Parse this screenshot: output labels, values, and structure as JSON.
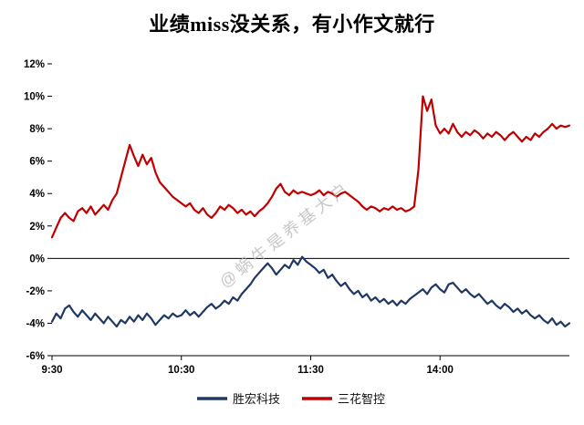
{
  "watermark": "@蜗牛是养基大户",
  "colors": {
    "axis": "#000000",
    "watermark": "#b3b3b3"
  },
  "chart_data": {
    "type": "line",
    "title": "业绩miss没关系，有小作文就行",
    "xlabel": "",
    "ylabel": "",
    "grid": false,
    "zero_line": true,
    "legend_position": "bottom",
    "ylim": [
      -6,
      12
    ],
    "xlim": [
      0,
      240
    ],
    "yticks": [
      {
        "v": -6,
        "label": "-6%"
      },
      {
        "v": -4,
        "label": "-4%"
      },
      {
        "v": -2,
        "label": "-2%"
      },
      {
        "v": 0,
        "label": "0%"
      },
      {
        "v": 2,
        "label": "2%"
      },
      {
        "v": 4,
        "label": "4%"
      },
      {
        "v": 6,
        "label": "6%"
      },
      {
        "v": 8,
        "label": "8%"
      },
      {
        "v": 10,
        "label": "10%"
      },
      {
        "v": 12,
        "label": "12%"
      }
    ],
    "xticks": [
      {
        "t": 0,
        "label": "9:30"
      },
      {
        "t": 60,
        "label": "10:30"
      },
      {
        "t": 120,
        "label": "11:30"
      },
      {
        "t": 180,
        "label": "14:00"
      }
    ],
    "x": [
      0,
      2,
      4,
      6,
      8,
      10,
      12,
      14,
      16,
      18,
      20,
      22,
      24,
      26,
      28,
      30,
      32,
      34,
      36,
      38,
      40,
      42,
      44,
      46,
      48,
      50,
      52,
      54,
      56,
      58,
      60,
      62,
      64,
      66,
      68,
      70,
      72,
      74,
      76,
      78,
      80,
      82,
      84,
      86,
      88,
      90,
      92,
      94,
      96,
      98,
      100,
      102,
      104,
      106,
      108,
      110,
      112,
      114,
      116,
      118,
      120,
      122,
      124,
      126,
      128,
      130,
      132,
      134,
      136,
      138,
      140,
      142,
      144,
      146,
      148,
      150,
      152,
      154,
      156,
      158,
      160,
      162,
      164,
      166,
      168,
      170,
      172,
      174,
      176,
      178,
      180,
      182,
      184,
      186,
      188,
      190,
      192,
      194,
      196,
      198,
      200,
      202,
      204,
      206,
      208,
      210,
      212,
      214,
      216,
      218,
      220,
      222,
      224,
      226,
      228,
      230,
      232,
      234,
      236,
      238,
      240
    ],
    "series": [
      {
        "name": "胜宏科技",
        "key": "shenghong",
        "color": "#1f3864",
        "values": [
          -3.9,
          -3.4,
          -3.7,
          -3.1,
          -2.9,
          -3.3,
          -3.6,
          -3.2,
          -3.5,
          -3.8,
          -3.4,
          -3.7,
          -4.0,
          -3.6,
          -3.9,
          -4.2,
          -3.8,
          -4.0,
          -3.6,
          -3.9,
          -3.5,
          -3.8,
          -3.4,
          -3.7,
          -4.1,
          -3.8,
          -3.5,
          -3.7,
          -3.4,
          -3.6,
          -3.5,
          -3.2,
          -3.5,
          -3.3,
          -3.6,
          -3.3,
          -3.0,
          -2.8,
          -3.1,
          -2.9,
          -2.6,
          -2.8,
          -2.4,
          -2.6,
          -2.2,
          -1.9,
          -1.6,
          -1.2,
          -0.9,
          -0.6,
          -0.3,
          -0.6,
          -1.0,
          -0.7,
          -0.4,
          -0.6,
          -0.1,
          -0.4,
          0.1,
          -0.2,
          -0.4,
          -0.6,
          -0.9,
          -0.7,
          -1.2,
          -1.0,
          -1.4,
          -1.7,
          -1.5,
          -1.9,
          -2.2,
          -2.0,
          -2.4,
          -2.2,
          -2.6,
          -2.4,
          -2.7,
          -2.5,
          -2.8,
          -2.6,
          -2.9,
          -2.6,
          -2.8,
          -2.5,
          -2.3,
          -2.1,
          -1.9,
          -2.2,
          -1.8,
          -1.6,
          -1.9,
          -2.1,
          -1.6,
          -1.5,
          -1.8,
          -2.1,
          -1.9,
          -2.2,
          -2.4,
          -2.2,
          -2.5,
          -2.8,
          -2.6,
          -2.9,
          -3.1,
          -2.8,
          -3.0,
          -3.3,
          -3.1,
          -3.4,
          -3.2,
          -3.5,
          -3.7,
          -3.5,
          -3.8,
          -4.0,
          -3.7,
          -4.1,
          -3.9,
          -4.2,
          -4.0
        ]
      },
      {
        "name": "三花智控",
        "key": "sanhua",
        "color": "#c00000",
        "values": [
          1.3,
          1.9,
          2.5,
          2.8,
          2.5,
          2.3,
          2.9,
          3.1,
          2.8,
          3.2,
          2.7,
          3.0,
          3.3,
          3.0,
          3.6,
          4.0,
          5.0,
          6.0,
          7.0,
          6.3,
          5.7,
          6.4,
          5.8,
          6.2,
          5.3,
          4.7,
          4.4,
          4.1,
          3.8,
          3.6,
          3.4,
          3.2,
          3.4,
          3.0,
          2.8,
          3.1,
          2.7,
          2.5,
          2.8,
          3.2,
          3.0,
          3.3,
          3.1,
          2.8,
          3.0,
          2.7,
          2.9,
          2.6,
          2.9,
          3.1,
          3.4,
          3.8,
          4.3,
          4.6,
          4.1,
          3.9,
          4.2,
          4.0,
          4.1,
          4.0,
          3.9,
          4.0,
          4.2,
          3.9,
          4.1,
          4.0,
          3.8,
          4.0,
          4.1,
          3.9,
          3.7,
          3.5,
          3.2,
          3.0,
          3.2,
          3.1,
          2.9,
          3.1,
          3.0,
          3.2,
          3.0,
          3.1,
          2.9,
          3.0,
          3.2,
          5.5,
          10.0,
          9.1,
          9.8,
          8.2,
          7.7,
          8.0,
          7.7,
          8.3,
          7.8,
          7.5,
          7.8,
          7.6,
          7.9,
          7.7,
          7.4,
          7.7,
          7.5,
          7.8,
          7.6,
          7.3,
          7.6,
          7.8,
          7.5,
          7.2,
          7.5,
          7.3,
          7.7,
          7.5,
          7.8,
          8.0,
          8.3,
          8.0,
          8.2,
          8.1,
          8.2
        ]
      }
    ]
  }
}
